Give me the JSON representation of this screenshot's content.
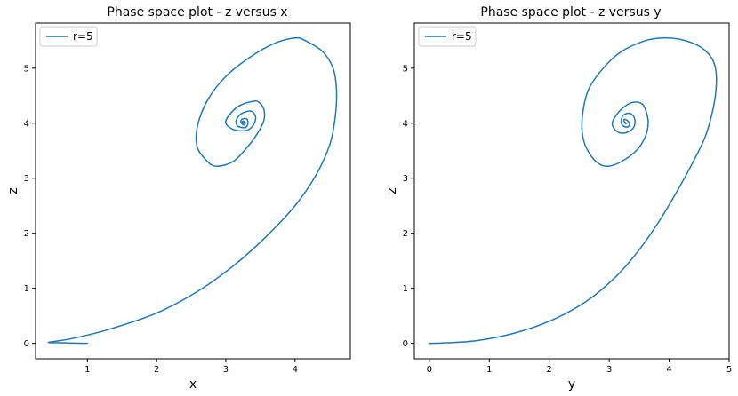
{
  "chart_data": [
    {
      "type": "line",
      "title": "Phase space plot - z versus x",
      "xlabel": "x",
      "ylabel": "z",
      "xlim": [
        0.25,
        4.8
      ],
      "ylim": [
        -0.28,
        5.82
      ],
      "xticks": [
        1,
        2,
        3,
        4
      ],
      "yticks": [
        0,
        1,
        2,
        3,
        4,
        5
      ],
      "grid": false,
      "legend_position": "upper left",
      "series": [
        {
          "name": "r=5",
          "color": "#1f77b4",
          "x": [
            1.0,
            0.6,
            0.44,
            0.75,
            1.3,
            2.0,
            2.6,
            3.1,
            3.55,
            4.0,
            4.3,
            4.5,
            4.58,
            4.6,
            4.55,
            4.4,
            4.15,
            4.0,
            3.7,
            3.35,
            3.0,
            2.75,
            2.6,
            2.58,
            2.7,
            2.85,
            3.1,
            3.3,
            3.45,
            3.55,
            3.55,
            3.48,
            3.4,
            3.2,
            3.05,
            3.0,
            3.12,
            3.3,
            3.4,
            3.43,
            3.36,
            3.22,
            3.15,
            3.17,
            3.28,
            3.32,
            3.3,
            3.23,
            3.22,
            3.26,
            3.28,
            3.25,
            3.24,
            3.26,
            3.25
          ],
          "y": [
            0.0,
            0.01,
            0.02,
            0.08,
            0.25,
            0.55,
            0.95,
            1.4,
            1.9,
            2.5,
            3.05,
            3.6,
            4.1,
            4.6,
            5.0,
            5.3,
            5.5,
            5.55,
            5.45,
            5.2,
            4.85,
            4.45,
            4.0,
            3.6,
            3.35,
            3.22,
            3.3,
            3.55,
            3.8,
            4.05,
            4.25,
            4.38,
            4.4,
            4.32,
            4.15,
            4.0,
            3.88,
            3.87,
            3.97,
            4.12,
            4.22,
            4.17,
            4.05,
            3.95,
            3.92,
            4.0,
            4.08,
            4.07,
            4.01,
            3.97,
            4.0,
            4.04,
            4.02,
            4.0,
            4.01
          ]
        }
      ]
    },
    {
      "type": "line",
      "title": "Phase space plot - z versus y",
      "xlabel": "y",
      "ylabel": "z",
      "xlim": [
        -0.25,
        5.0
      ],
      "ylim": [
        -0.28,
        5.82
      ],
      "xticks": [
        0,
        1,
        2,
        3,
        4,
        5
      ],
      "yticks": [
        0,
        1,
        2,
        3,
        4,
        5
      ],
      "grid": false,
      "legend_position": "upper left",
      "series": [
        {
          "name": "r=5",
          "color": "#1f77b4",
          "x": [
            0.0,
            0.3,
            0.8,
            1.4,
            2.0,
            2.6,
            3.1,
            3.5,
            3.85,
            4.15,
            4.4,
            4.6,
            4.72,
            4.78,
            4.78,
            4.7,
            4.5,
            4.2,
            3.9,
            3.6,
            3.2,
            2.9,
            2.65,
            2.55,
            2.57,
            2.7,
            2.85,
            3.0,
            3.2,
            3.45,
            3.6,
            3.65,
            3.62,
            3.55,
            3.4,
            3.25,
            3.12,
            3.05,
            3.1,
            3.2,
            3.33,
            3.42,
            3.42,
            3.34,
            3.24,
            3.2,
            3.22,
            3.3,
            3.34,
            3.3,
            3.25,
            3.25,
            3.28,
            3.27,
            3.26
          ],
          "y": [
            0.0,
            0.01,
            0.05,
            0.18,
            0.4,
            0.75,
            1.2,
            1.7,
            2.25,
            2.8,
            3.3,
            3.75,
            4.2,
            4.6,
            4.95,
            5.2,
            5.4,
            5.52,
            5.55,
            5.5,
            5.3,
            5.0,
            4.6,
            4.1,
            3.7,
            3.4,
            3.25,
            3.22,
            3.3,
            3.5,
            3.75,
            4.0,
            4.2,
            4.35,
            4.38,
            4.3,
            4.15,
            4.0,
            3.88,
            3.82,
            3.85,
            3.95,
            4.1,
            4.18,
            4.15,
            4.05,
            3.96,
            3.93,
            3.98,
            4.05,
            4.07,
            4.03,
            3.99,
            4.01,
            4.02
          ]
        }
      ]
    }
  ]
}
